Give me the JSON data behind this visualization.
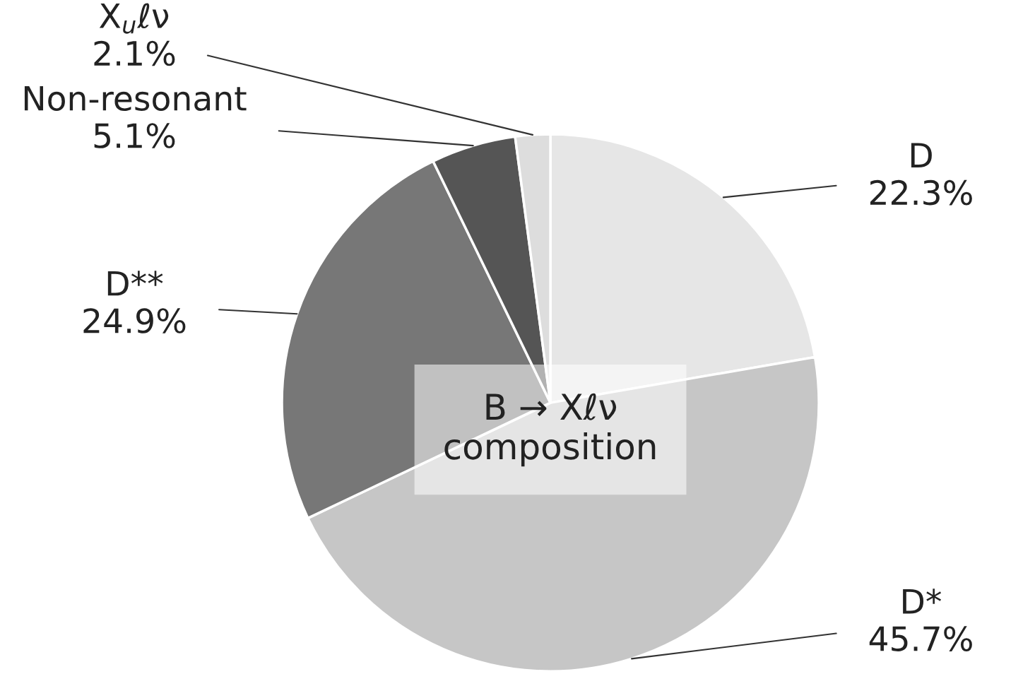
{
  "chart_data": {
    "type": "pie",
    "title": "B → Xℓν\ncomposition",
    "categories": [
      "D",
      "D*",
      "D**",
      "Non-resonant",
      "X$_{u}$ℓν"
    ],
    "values": [
      22.3,
      45.7,
      24.9,
      5.1,
      2.1
    ],
    "colors": [
      "#e6e6e6",
      "#c6c6c6",
      "#777777",
      "#555555",
      "#dddddd"
    ],
    "value_labels": [
      "22.3%",
      "45.7%",
      "24.9%",
      "5.1%",
      "2.1%"
    ]
  }
}
